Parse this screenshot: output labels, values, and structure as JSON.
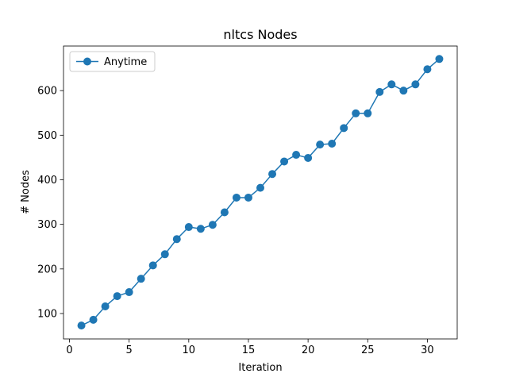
{
  "chart_data": {
    "type": "line",
    "title": "nltcs Nodes",
    "xlabel": "Iteration",
    "ylabel": "# Nodes",
    "xlim": [
      -0.5,
      32.5
    ],
    "ylim": [
      43,
      700
    ],
    "xticks": [
      0,
      5,
      10,
      15,
      20,
      25,
      30
    ],
    "yticks": [
      100,
      200,
      300,
      400,
      500,
      600
    ],
    "grid": false,
    "legend_position": "upper left",
    "series": [
      {
        "name": "Anytime",
        "color": "#1f77b4",
        "marker": "circle",
        "x": [
          1,
          2,
          3,
          4,
          5,
          6,
          7,
          8,
          9,
          10,
          11,
          12,
          13,
          14,
          15,
          16,
          17,
          18,
          19,
          20,
          21,
          22,
          23,
          24,
          25,
          26,
          27,
          28,
          29,
          30,
          31
        ],
        "y": [
          73,
          86,
          116,
          139,
          148,
          178,
          208,
          233,
          267,
          294,
          290,
          299,
          327,
          360,
          360,
          382,
          413,
          441,
          456,
          449,
          479,
          481,
          516,
          549,
          549,
          597,
          614,
          600,
          614,
          648,
          671
        ]
      }
    ]
  }
}
